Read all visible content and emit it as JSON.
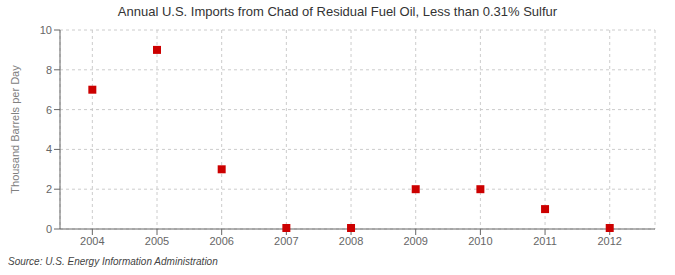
{
  "chart_data": {
    "type": "scatter",
    "title": "Annual U.S. Imports from Chad of Residual Fuel Oil, Less than 0.31% Sulfur",
    "ylabel": "Thousand Barrels per Day",
    "annotations": [
      "Source: U.S. Energy Information Administration"
    ],
    "x": [
      2004,
      2005,
      2006,
      2007,
      2008,
      2009,
      2010,
      2011,
      2012
    ],
    "values": [
      7.0,
      9.0,
      3.0,
      0.05,
      0.05,
      2.0,
      2.0,
      1.0,
      0.05
    ],
    "color": "#cc0000",
    "marker": "square",
    "xlim": [
      2003.5,
      2012.7
    ],
    "ylim": [
      0,
      10
    ],
    "xticks": [
      2004,
      2005,
      2006,
      2007,
      2008,
      2009,
      2010,
      2011,
      2012
    ],
    "yticks": [
      0,
      2,
      4,
      6,
      8,
      10
    ],
    "grid": true
  }
}
